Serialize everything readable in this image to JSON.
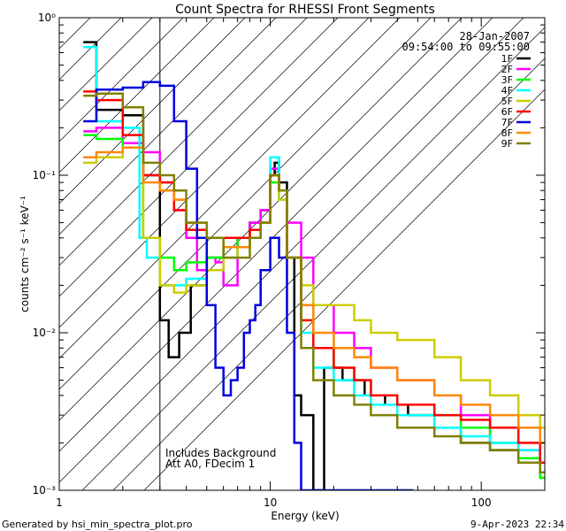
{
  "chart_data": {
    "type": "line",
    "title": "Count Spectra for RHESSI Front Segments",
    "xlabel": "Energy (keV)",
    "ylabel": "counts cm⁻² s⁻¹ keV⁻¹",
    "xscale": "log",
    "yscale": "log",
    "xlim": [
      1,
      200
    ],
    "ylim": [
      0.001,
      1
    ],
    "x_ticks": [
      {
        "value": 1,
        "label": "1"
      },
      {
        "value": 10,
        "label": "10"
      },
      {
        "value": 100,
        "label": "100"
      }
    ],
    "y_ticks": [
      {
        "value": 1,
        "label": "10⁰"
      },
      {
        "value": 0.1,
        "label": "10⁻¹"
      },
      {
        "value": 0.01,
        "label": "10⁻²"
      },
      {
        "value": 0.001,
        "label": "10⁻³"
      }
    ],
    "excluded_region": {
      "from": 1,
      "to": 3,
      "style": "hatched"
    },
    "legend_position": "top-right",
    "date": "28-Jan-2007",
    "time_range": "09:54:00 to 09:55:00",
    "annotations": [
      "Includes Background",
      "Att A0, FDecim 1"
    ],
    "footer_left": "Generated by hsi_min_spectra_plot.pro",
    "footer_right": "9-Apr-2023 22:34",
    "series": [
      {
        "name": "1F",
        "color": "#000000",
        "x": [
          1.3,
          1.5,
          2,
          2.5,
          3,
          3.3,
          3.7,
          4.2,
          5,
          6,
          7,
          8,
          9,
          10,
          10.5,
          11,
          12,
          13,
          14,
          16,
          18,
          22,
          28,
          35,
          45,
          60,
          80,
          110,
          150,
          190
        ],
        "y": [
          0.7,
          0.26,
          0.24,
          0.1,
          0.012,
          0.007,
          0.01,
          0.02,
          0.03,
          0.035,
          0.04,
          0.05,
          0.06,
          0.1,
          0.12,
          0.09,
          0.03,
          0.004,
          0.003,
          0.001,
          0.006,
          0.005,
          0.004,
          0.0035,
          0.003,
          0.0025,
          0.002,
          0.0018,
          0.0016,
          0.0015
        ]
      },
      {
        "name": "2F",
        "color": "#ff00ff",
        "x": [
          1.3,
          1.5,
          2,
          2.5,
          3,
          3.5,
          4,
          4.5,
          5,
          5.5,
          6,
          7,
          8,
          9,
          10,
          11,
          12,
          14,
          16,
          20,
          25,
          30,
          40,
          60,
          80,
          110,
          150,
          190
        ],
        "y": [
          0.19,
          0.2,
          0.16,
          0.14,
          0.09,
          0.06,
          0.04,
          0.025,
          0.03,
          0.028,
          0.02,
          0.04,
          0.05,
          0.06,
          0.11,
          0.08,
          0.05,
          0.03,
          0.015,
          0.01,
          0.008,
          0.006,
          0.005,
          0.004,
          0.003,
          0.002,
          0.0018,
          0.0015
        ]
      },
      {
        "name": "3F",
        "color": "#00ff00",
        "x": [
          1.3,
          1.5,
          2,
          2.5,
          3,
          3.5,
          4,
          5,
          6,
          7,
          8,
          9,
          10,
          11,
          12,
          14,
          16,
          20,
          25,
          30,
          40,
          60,
          80,
          110,
          150,
          190
        ],
        "y": [
          0.18,
          0.17,
          0.15,
          0.04,
          0.03,
          0.025,
          0.028,
          0.03,
          0.035,
          0.04,
          0.045,
          0.05,
          0.09,
          0.08,
          0.03,
          0.012,
          0.008,
          0.006,
          0.005,
          0.004,
          0.0035,
          0.003,
          0.0025,
          0.002,
          0.0016,
          0.0012
        ]
      },
      {
        "name": "4F",
        "color": "#00ffff",
        "x": [
          1.3,
          1.5,
          2,
          2.4,
          2.6,
          3,
          3.5,
          4,
          5,
          6,
          7,
          8,
          9,
          10,
          11,
          12,
          14,
          16,
          20,
          25,
          30,
          40,
          60,
          80,
          110,
          150,
          190
        ],
        "y": [
          0.65,
          0.22,
          0.2,
          0.04,
          0.03,
          0.02,
          0.02,
          0.022,
          0.025,
          0.03,
          0.035,
          0.04,
          0.05,
          0.13,
          0.07,
          0.03,
          0.01,
          0.006,
          0.005,
          0.004,
          0.0035,
          0.003,
          0.0025,
          0.0022,
          0.002,
          0.0018,
          0.0015
        ]
      },
      {
        "name": "5F",
        "color": "#cccc00",
        "x": [
          1.3,
          1.5,
          2,
          2.5,
          3,
          3.5,
          4,
          5,
          6,
          7,
          8,
          9,
          10,
          11,
          12,
          14,
          16,
          20,
          25,
          30,
          40,
          60,
          80,
          110,
          150,
          190
        ],
        "y": [
          0.12,
          0.13,
          0.15,
          0.04,
          0.02,
          0.018,
          0.02,
          0.025,
          0.03,
          0.035,
          0.045,
          0.05,
          0.1,
          0.07,
          0.03,
          0.02,
          0.015,
          0.015,
          0.012,
          0.01,
          0.009,
          0.007,
          0.005,
          0.004,
          0.003,
          0.0025
        ]
      },
      {
        "name": "6F",
        "color": "#ff0000",
        "x": [
          1.3,
          1.5,
          2,
          2.5,
          3,
          3.5,
          4,
          5,
          6,
          7,
          8,
          9,
          10,
          11,
          12,
          14,
          16,
          20,
          25,
          30,
          40,
          60,
          80,
          110,
          150,
          190
        ],
        "y": [
          0.34,
          0.3,
          0.18,
          0.1,
          0.09,
          0.06,
          0.045,
          0.04,
          0.04,
          0.04,
          0.045,
          0.05,
          0.1,
          0.08,
          0.03,
          0.012,
          0.008,
          0.006,
          0.005,
          0.004,
          0.0035,
          0.003,
          0.0028,
          0.0025,
          0.002,
          0.0015
        ]
      },
      {
        "name": "7F",
        "color": "#0000dd",
        "x": [
          1.3,
          1.5,
          2,
          2.5,
          3,
          3.5,
          4,
          4.5,
          5,
          5.5,
          6,
          6.5,
          7,
          7.5,
          8,
          8.5,
          9,
          10,
          11,
          12,
          13,
          14,
          16,
          20,
          30,
          45
        ],
        "y": [
          0.22,
          0.35,
          0.36,
          0.39,
          0.37,
          0.22,
          0.11,
          0.04,
          0.015,
          0.006,
          0.004,
          0.005,
          0.006,
          0.01,
          0.012,
          0.015,
          0.025,
          0.04,
          0.03,
          0.01,
          0.002,
          0.001,
          0.001,
          0.001,
          0.001,
          0.001
        ]
      },
      {
        "name": "8F",
        "color": "#ff8800",
        "x": [
          1.3,
          1.5,
          2,
          2.5,
          3,
          3.5,
          4,
          5,
          6,
          7,
          8,
          9,
          10,
          11,
          12,
          14,
          16,
          20,
          25,
          30,
          40,
          60,
          80,
          110,
          150,
          190
        ],
        "y": [
          0.13,
          0.14,
          0.15,
          0.09,
          0.08,
          0.07,
          0.05,
          0.04,
          0.035,
          0.035,
          0.04,
          0.05,
          0.1,
          0.08,
          0.03,
          0.015,
          0.01,
          0.008,
          0.007,
          0.006,
          0.005,
          0.004,
          0.0035,
          0.003,
          0.0025,
          0.002
        ]
      },
      {
        "name": "9F",
        "color": "#808000",
        "x": [
          1.3,
          1.5,
          2,
          2.5,
          3,
          3.5,
          4,
          5,
          6,
          7,
          8,
          9,
          10,
          11,
          12,
          14,
          16,
          20,
          25,
          30,
          40,
          60,
          80,
          110,
          150,
          190
        ],
        "y": [
          0.32,
          0.33,
          0.27,
          0.12,
          0.1,
          0.08,
          0.05,
          0.04,
          0.03,
          0.03,
          0.04,
          0.05,
          0.1,
          0.08,
          0.03,
          0.008,
          0.005,
          0.004,
          0.0035,
          0.003,
          0.0025,
          0.0022,
          0.002,
          0.0018,
          0.0015,
          0.0013
        ]
      }
    ]
  }
}
